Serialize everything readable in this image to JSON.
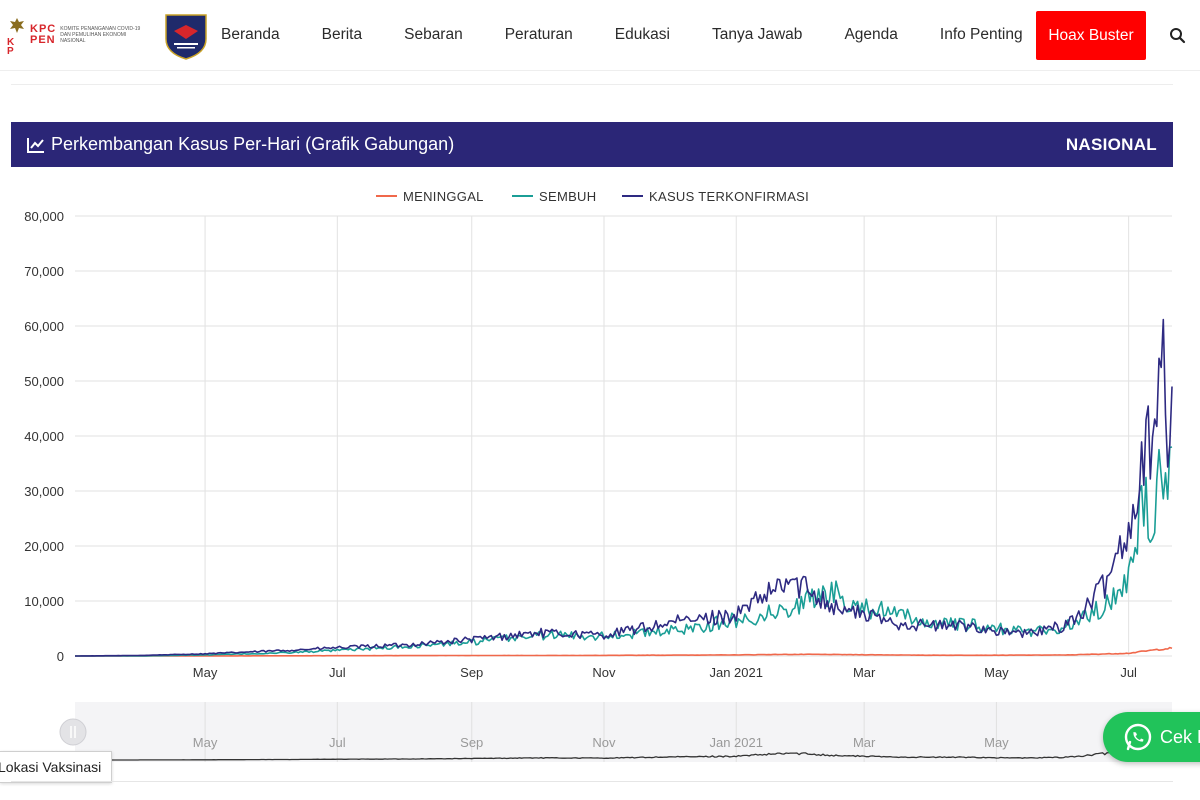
{
  "header": {
    "logo_letters_top": "KPC",
    "logo_letters_bottom": "PEN",
    "logo_caption": "Komite Penanganan COVID-19 dan Pemulihan Ekonomi Nasional",
    "nav": [
      {
        "label": "Beranda"
      },
      {
        "label": "Berita"
      },
      {
        "label": "Sebaran"
      },
      {
        "label": "Peraturan"
      },
      {
        "label": "Edukasi"
      },
      {
        "label": "Tanya Jawab"
      },
      {
        "label": "Agenda"
      },
      {
        "label": "Info Penting"
      }
    ],
    "hoax_button": "Hoax Buster",
    "search_icon": "search-icon"
  },
  "panel": {
    "title": "Perkembangan Kasus Per-Hari (Grafik Gabungan)",
    "scope": "NASIONAL",
    "icon": "line-chart-icon"
  },
  "colors": {
    "panel_bg": "#2b2677",
    "meninggal": "#f0684b",
    "sembuh": "#1b9e96",
    "terkonfirmasi": "#2e2a82",
    "hoax": "#ff0000",
    "whatsapp": "#21c35a"
  },
  "chart_data": {
    "type": "line",
    "title": "",
    "xlabel": "",
    "ylabel": "",
    "legend_position": "top-center",
    "grid": true,
    "ylim": [
      0,
      80000
    ],
    "y_ticks": [
      "0",
      "10,000",
      "20,000",
      "30,000",
      "40,000",
      "50,000",
      "60,000",
      "70,000",
      "80,000"
    ],
    "x_range": [
      "2020-03-02",
      "2021-07-21"
    ],
    "x_ticks": [
      {
        "label": "May",
        "date": "2020-05-01"
      },
      {
        "label": "Jul",
        "date": "2020-07-01"
      },
      {
        "label": "Sep",
        "date": "2020-09-01"
      },
      {
        "label": "Nov",
        "date": "2020-11-01"
      },
      {
        "label": "Jan 2021",
        "date": "2021-01-01"
      },
      {
        "label": "Mar",
        "date": "2021-03-01"
      },
      {
        "label": "May",
        "date": "2021-05-01"
      },
      {
        "label": "Jul",
        "date": "2021-07-01"
      }
    ],
    "series": [
      {
        "name": "MENINGGAL",
        "color": "#f0684b",
        "points": [
          [
            "2020-03-02",
            0
          ],
          [
            "2020-05-01",
            20
          ],
          [
            "2020-07-01",
            50
          ],
          [
            "2020-09-01",
            90
          ],
          [
            "2020-11-01",
            110
          ],
          [
            "2021-01-01",
            200
          ],
          [
            "2021-01-20",
            280
          ],
          [
            "2021-02-05",
            300
          ],
          [
            "2021-03-01",
            230
          ],
          [
            "2021-04-01",
            140
          ],
          [
            "2021-05-01",
            140
          ],
          [
            "2021-06-01",
            180
          ],
          [
            "2021-06-20",
            370
          ],
          [
            "2021-07-01",
            500
          ],
          [
            "2021-07-10",
            950
          ],
          [
            "2021-07-17",
            1300
          ],
          [
            "2021-07-21",
            1400
          ]
        ]
      },
      {
        "name": "SEMBUH",
        "color": "#1b9e96",
        "points": [
          [
            "2020-03-02",
            0
          ],
          [
            "2020-04-01",
            10
          ],
          [
            "2020-05-01",
            200
          ],
          [
            "2020-06-01",
            500
          ],
          [
            "2020-07-01",
            1000
          ],
          [
            "2020-08-01",
            1700
          ],
          [
            "2020-09-01",
            2500
          ],
          [
            "2020-10-01",
            3800
          ],
          [
            "2020-11-01",
            3700
          ],
          [
            "2020-12-01",
            4500
          ],
          [
            "2021-01-01",
            6500
          ],
          [
            "2021-01-20",
            8000
          ],
          [
            "2021-02-05",
            10500
          ],
          [
            "2021-02-15",
            11500
          ],
          [
            "2021-02-25",
            9500
          ],
          [
            "2021-03-15",
            7500
          ],
          [
            "2021-04-01",
            6000
          ],
          [
            "2021-04-20",
            5500
          ],
          [
            "2021-05-01",
            5000
          ],
          [
            "2021-05-15",
            4500
          ],
          [
            "2021-06-01",
            5000
          ],
          [
            "2021-06-10",
            7000
          ],
          [
            "2021-06-20",
            9000
          ],
          [
            "2021-06-28",
            12000
          ],
          [
            "2021-07-04",
            20000
          ],
          [
            "2021-07-08",
            30000
          ],
          [
            "2021-07-12",
            18000
          ],
          [
            "2021-07-15",
            32000
          ],
          [
            "2021-07-17",
            30000
          ],
          [
            "2021-07-19",
            34000
          ],
          [
            "2021-07-21",
            38000
          ]
        ]
      },
      {
        "name": "KASUS TERKONFIRMASI",
        "color": "#2e2a82",
        "points": [
          [
            "2020-03-02",
            0
          ],
          [
            "2020-04-01",
            100
          ],
          [
            "2020-05-01",
            400
          ],
          [
            "2020-06-01",
            900
          ],
          [
            "2020-07-01",
            1500
          ],
          [
            "2020-08-01",
            2000
          ],
          [
            "2020-09-01",
            3000
          ],
          [
            "2020-10-01",
            4200
          ],
          [
            "2020-11-01",
            3800
          ],
          [
            "2020-12-01",
            6000
          ],
          [
            "2021-01-01",
            7500
          ],
          [
            "2021-01-15",
            11000
          ],
          [
            "2021-01-25",
            13500
          ],
          [
            "2021-02-05",
            12000
          ],
          [
            "2021-02-15",
            9000
          ],
          [
            "2021-03-01",
            7500
          ],
          [
            "2021-03-15",
            6000
          ],
          [
            "2021-04-01",
            5500
          ],
          [
            "2021-04-20",
            5500
          ],
          [
            "2021-05-01",
            4500
          ],
          [
            "2021-05-15",
            4000
          ],
          [
            "2021-06-01",
            5500
          ],
          [
            "2021-06-10",
            8000
          ],
          [
            "2021-06-20",
            13000
          ],
          [
            "2021-06-28",
            21000
          ],
          [
            "2021-07-04",
            27000
          ],
          [
            "2021-07-08",
            38000
          ],
          [
            "2021-07-12",
            40000
          ],
          [
            "2021-07-15",
            56000
          ],
          [
            "2021-07-17",
            51000
          ],
          [
            "2021-07-19",
            34000
          ],
          [
            "2021-07-20",
            44000
          ],
          [
            "2021-07-21",
            49000
          ]
        ]
      }
    ],
    "navigator_ticks": [
      "May",
      "Jul",
      "Sep",
      "Nov",
      "Jan 2021",
      "Mar",
      "May"
    ]
  },
  "floating": {
    "whatsapp_label": "Cek H",
    "vaksin_label": "Lokasi Vaksinasi"
  }
}
